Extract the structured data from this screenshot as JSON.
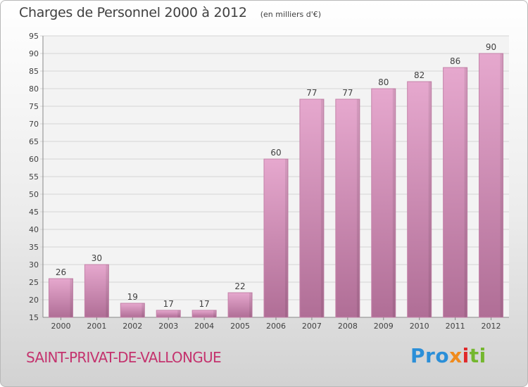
{
  "header": {
    "title": "Charges de Personnel 2000 à 2012",
    "unit": "(en milliers d'€)"
  },
  "footer": {
    "location": "SAINT-PRIVAT-DE-VALLONGUE",
    "brand_parts": [
      "Pro",
      "x",
      "i",
      "ti"
    ]
  },
  "colors": {
    "bar_top": "#e6a8ce",
    "bar_bottom": "#b06e96",
    "bar_side": "#c483a9",
    "grid": "#d4d4d4",
    "axis": "#888888",
    "text": "#404040",
    "location": "#c4336e"
  },
  "chart_data": {
    "type": "bar",
    "categories": [
      "2000",
      "2001",
      "2002",
      "2003",
      "2004",
      "2005",
      "2006",
      "2007",
      "2008",
      "2009",
      "2010",
      "2011",
      "2012"
    ],
    "values": [
      26,
      30,
      19,
      17,
      17,
      22,
      60,
      77,
      77,
      80,
      82,
      86,
      90
    ],
    "ylim": [
      15,
      95
    ],
    "yticks": [
      15,
      20,
      25,
      30,
      35,
      40,
      45,
      50,
      55,
      60,
      65,
      70,
      75,
      80,
      85,
      90,
      95
    ],
    "grid": true,
    "data_labels": true,
    "title": "Charges de Personnel 2000 à 2012",
    "xlabel": "",
    "ylabel": ""
  }
}
